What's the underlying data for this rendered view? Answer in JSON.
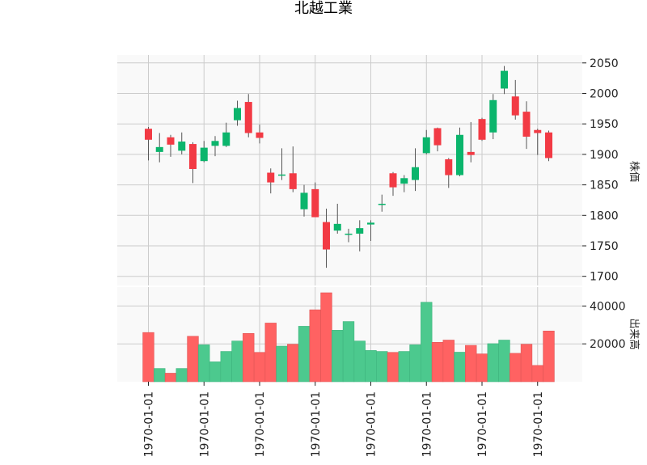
{
  "chart_data": {
    "type": "candlestick",
    "title": "北越工業",
    "ylabel_price": "株価",
    "ylabel_volume": "出来高",
    "x_tick_labels": [
      "1970-01-01",
      "1970-01-01",
      "1970-01-01",
      "1970-01-01",
      "1970-01-01",
      "1970-01-01",
      "1970-01-01",
      "1970-01-01"
    ],
    "x_tick_indices": [
      0,
      5,
      10,
      15,
      20,
      25,
      30,
      35
    ],
    "price_ylim": [
      1685,
      2063
    ],
    "price_ticks": [
      1700,
      1750,
      1800,
      1850,
      1900,
      1950,
      2000,
      2050
    ],
    "volume_ylim": [
      0,
      50000
    ],
    "volume_ticks": [
      20000,
      40000
    ],
    "volume_tick_labels": [
      "20000",
      "40000"
    ],
    "grid": true,
    "up_color": "#0bb56c",
    "down_color": "#f23a44",
    "vol_up_color": "#4cc98e",
    "vol_down_color": "#ff6262",
    "candles": [
      {
        "open": 1942,
        "high": 1945,
        "low": 1890,
        "close": 1924
      },
      {
        "open": 1904,
        "high": 1935,
        "low": 1887,
        "close": 1912
      },
      {
        "open": 1928,
        "high": 1932,
        "low": 1896,
        "close": 1916
      },
      {
        "open": 1906,
        "high": 1936,
        "low": 1900,
        "close": 1921
      },
      {
        "open": 1917,
        "high": 1920,
        "low": 1853,
        "close": 1876
      },
      {
        "open": 1889,
        "high": 1922,
        "low": 1887,
        "close": 1911
      },
      {
        "open": 1914,
        "high": 1930,
        "low": 1897,
        "close": 1922
      },
      {
        "open": 1914,
        "high": 1952,
        "low": 1912,
        "close": 1936
      },
      {
        "open": 1956,
        "high": 1988,
        "low": 1947,
        "close": 1976
      },
      {
        "open": 1986,
        "high": 1999,
        "low": 1928,
        "close": 1935
      },
      {
        "open": 1936,
        "high": 1949,
        "low": 1918,
        "close": 1927
      },
      {
        "open": 1870,
        "high": 1877,
        "low": 1836,
        "close": 1854
      },
      {
        "open": 1866,
        "high": 1910,
        "low": 1858,
        "close": 1867
      },
      {
        "open": 1869,
        "high": 1913,
        "low": 1838,
        "close": 1843
      },
      {
        "open": 1810,
        "high": 1850,
        "low": 1798,
        "close": 1837
      },
      {
        "open": 1843,
        "high": 1854,
        "low": 1797,
        "close": 1797
      },
      {
        "open": 1789,
        "high": 1811,
        "low": 1714,
        "close": 1744
      },
      {
        "open": 1775,
        "high": 1819,
        "low": 1770,
        "close": 1786
      },
      {
        "open": 1768,
        "high": 1778,
        "low": 1756,
        "close": 1770
      },
      {
        "open": 1770,
        "high": 1792,
        "low": 1741,
        "close": 1779
      },
      {
        "open": 1785,
        "high": 1792,
        "low": 1758,
        "close": 1788
      },
      {
        "open": 1818,
        "high": 1834,
        "low": 1806,
        "close": 1819
      },
      {
        "open": 1869,
        "high": 1871,
        "low": 1832,
        "close": 1846
      },
      {
        "open": 1852,
        "high": 1866,
        "low": 1838,
        "close": 1861
      },
      {
        "open": 1858,
        "high": 1910,
        "low": 1840,
        "close": 1879
      },
      {
        "open": 1902,
        "high": 1940,
        "low": 1900,
        "close": 1928
      },
      {
        "open": 1943,
        "high": 1944,
        "low": 1905,
        "close": 1915
      },
      {
        "open": 1892,
        "high": 1894,
        "low": 1845,
        "close": 1866
      },
      {
        "open": 1866,
        "high": 1944,
        "low": 1864,
        "close": 1932
      },
      {
        "open": 1904,
        "high": 1953,
        "low": 1887,
        "close": 1899
      },
      {
        "open": 1958,
        "high": 1960,
        "low": 1922,
        "close": 1924
      },
      {
        "open": 1936,
        "high": 1999,
        "low": 1925,
        "close": 1989
      },
      {
        "open": 2008,
        "high": 2045,
        "low": 1999,
        "close": 2037
      },
      {
        "open": 1995,
        "high": 2022,
        "low": 1957,
        "close": 1964
      },
      {
        "open": 1970,
        "high": 1987,
        "low": 1909,
        "close": 1929
      },
      {
        "open": 1940,
        "high": 1942,
        "low": 1899,
        "close": 1935
      },
      {
        "open": 1936,
        "high": 1939,
        "low": 1889,
        "close": 1894
      }
    ],
    "volumes": [
      26000,
      7000,
      4500,
      7000,
      24000,
      19500,
      10500,
      16000,
      21500,
      25500,
      15500,
      31000,
      18800,
      19800,
      29300,
      38000,
      47000,
      27200,
      31800,
      21500,
      16500,
      16000,
      15500,
      16000,
      19500,
      42000,
      20800,
      22000,
      15600,
      19200,
      14700,
      20100,
      22000,
      15000,
      19800,
      8600,
      26800
    ]
  }
}
